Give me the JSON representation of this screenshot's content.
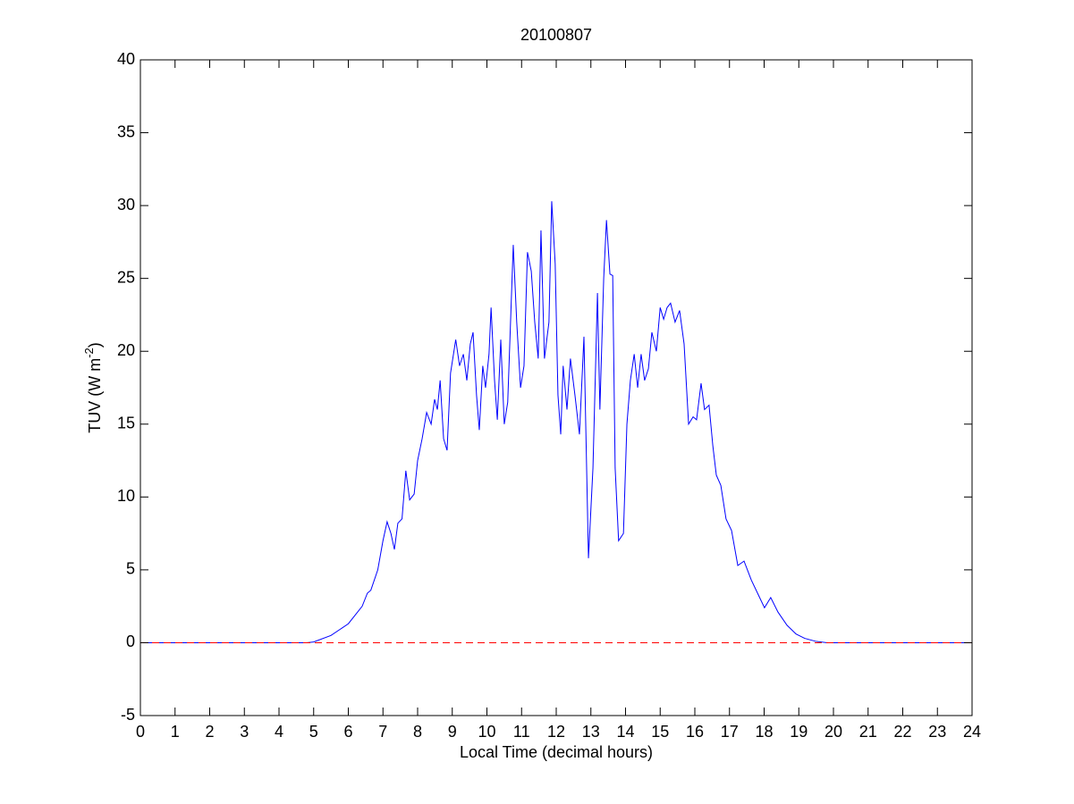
{
  "chart_data": {
    "type": "line",
    "title": "20100807",
    "xlabel": "Local Time (decimal hours)",
    "ylabel": [
      "TUV (W m",
      "-2",
      ")"
    ],
    "xlim": [
      0,
      24
    ],
    "ylim": [
      -5,
      40
    ],
    "xticks": [
      0,
      1,
      2,
      3,
      4,
      5,
      6,
      7,
      8,
      9,
      10,
      11,
      12,
      13,
      14,
      15,
      16,
      17,
      18,
      19,
      20,
      21,
      22,
      23,
      24
    ],
    "yticks": [
      -5,
      0,
      5,
      10,
      15,
      20,
      25,
      30,
      35,
      40
    ],
    "grid": false,
    "series": [
      {
        "color": "#0000ff",
        "line_style": "solid",
        "x": [
          0,
          4.8,
          5.0,
          5.5,
          6.0,
          6.4,
          6.55,
          6.65,
          6.85,
          7.0,
          7.12,
          7.23,
          7.33,
          7.43,
          7.55,
          7.66,
          7.77,
          7.9,
          8.0,
          8.13,
          8.26,
          8.39,
          8.49,
          8.57,
          8.65,
          8.75,
          8.85,
          8.95,
          9.1,
          9.21,
          9.32,
          9.42,
          9.52,
          9.6,
          9.7,
          9.78,
          9.88,
          9.96,
          10.06,
          10.12,
          10.22,
          10.3,
          10.4,
          10.5,
          10.6,
          10.76,
          10.86,
          10.97,
          11.07,
          11.17,
          11.28,
          11.38,
          11.48,
          11.56,
          11.66,
          11.79,
          11.87,
          11.97,
          12.05,
          12.13,
          12.2,
          12.31,
          12.41,
          12.54,
          12.67,
          12.8,
          12.93,
          13.06,
          13.19,
          13.26,
          13.37,
          13.45,
          13.55,
          13.63,
          13.7,
          13.8,
          13.94,
          14.04,
          14.14,
          14.25,
          14.35,
          14.45,
          14.55,
          14.66,
          14.76,
          14.89,
          15.0,
          15.1,
          15.2,
          15.3,
          15.43,
          15.56,
          15.69,
          15.82,
          15.95,
          16.05,
          16.18,
          16.28,
          16.41,
          16.52,
          16.62,
          16.75,
          16.9,
          17.06,
          17.24,
          17.42,
          17.63,
          17.83,
          18.01,
          18.19,
          18.4,
          18.66,
          18.92,
          19.17,
          19.48,
          19.82,
          24
        ],
        "values": [
          0,
          0,
          0.05,
          0.5,
          1.3,
          2.5,
          3.4,
          3.6,
          5,
          7,
          8.3,
          7.5,
          6.4,
          8.2,
          8.5,
          11.8,
          9.8,
          10.2,
          12.5,
          14,
          15.8,
          15,
          16.7,
          16,
          18,
          14,
          13.2,
          18.5,
          20.8,
          19,
          19.8,
          18,
          20.5,
          21.3,
          17,
          14.6,
          19,
          17.5,
          19.8,
          23,
          18,
          15.3,
          20.8,
          15,
          16.5,
          27.3,
          22,
          17.5,
          19,
          26.8,
          25.5,
          22,
          19.5,
          28.3,
          19.5,
          22,
          30.3,
          26,
          17,
          14.3,
          19,
          16,
          19.5,
          17,
          14.3,
          21,
          5.8,
          12,
          24,
          16,
          25,
          29,
          25.3,
          25.2,
          12,
          7,
          7.5,
          15,
          18,
          19.8,
          17.5,
          19.8,
          18,
          18.8,
          21.3,
          20,
          23,
          22.2,
          23,
          23.3,
          22,
          22.8,
          20.5,
          15,
          15.5,
          15.3,
          17.8,
          16,
          16.3,
          13.5,
          11.5,
          10.8,
          8.5,
          7.7,
          5.3,
          5.6,
          4.3,
          3.3,
          2.4,
          3.1,
          2.1,
          1.2,
          0.6,
          0.3,
          0.1,
          0,
          0
        ]
      },
      {
        "color": "#ff0000",
        "line_style": "dashed",
        "x": [
          0,
          24
        ],
        "values": [
          0,
          0
        ]
      }
    ]
  }
}
